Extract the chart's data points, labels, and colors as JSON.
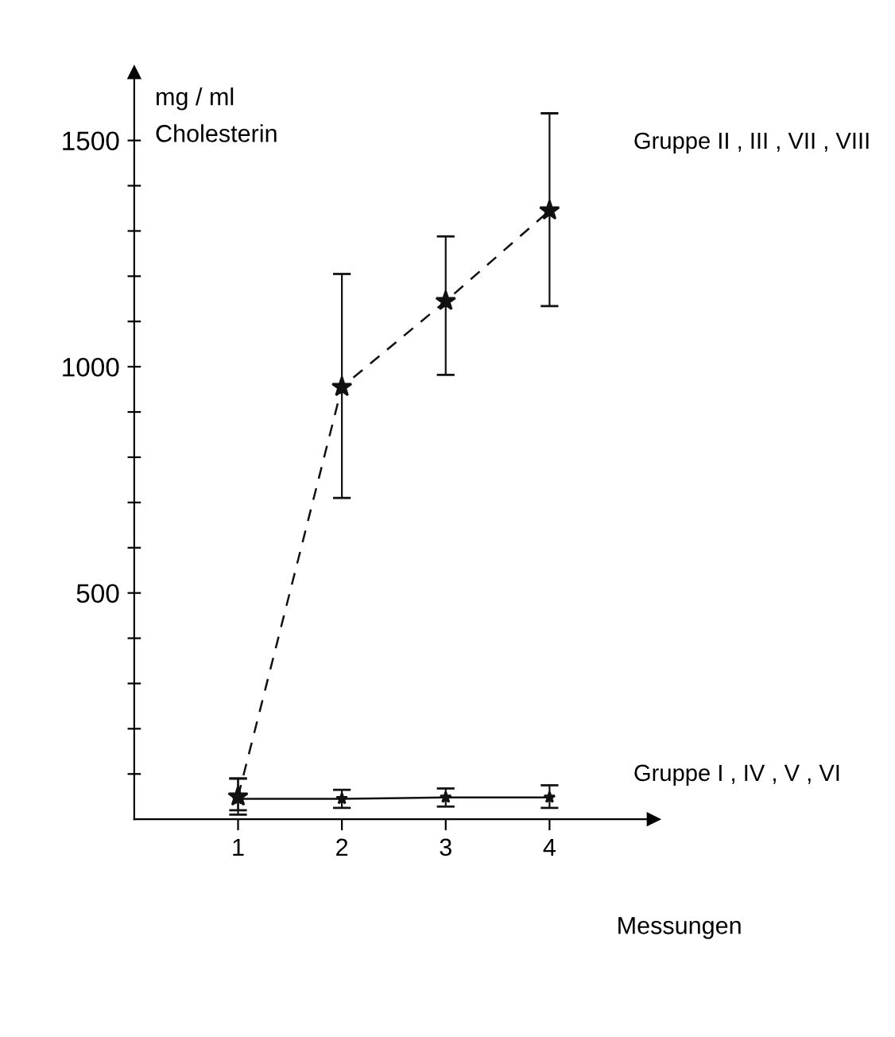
{
  "chart_data": {
    "type": "line",
    "ylabel": "mg / ml\nCholesterin",
    "xlabel": "Messungen",
    "x": [
      1,
      2,
      3,
      4
    ],
    "series": [
      {
        "name": "Gruppe II , III , VII , VIII",
        "color": "#111111",
        "line_style": "dashed",
        "values": [
          50,
          955,
          1145,
          1345
        ],
        "errors": [
          [
            20,
            90
          ],
          [
            710,
            1205
          ],
          [
            982,
            1288
          ],
          [
            1134,
            1560
          ]
        ]
      },
      {
        "name": "Gruppe I , IV , V , VI",
        "color": "#111111",
        "line_style": "solid",
        "values": [
          45,
          45,
          48,
          48
        ],
        "errors": [
          [
            10,
            90
          ],
          [
            25,
            65
          ],
          [
            28,
            68
          ],
          [
            25,
            75
          ]
        ]
      }
    ],
    "xlim": [
      0,
      5
    ],
    "ylim": [
      0,
      1650
    ],
    "xticks": [
      1,
      2,
      3,
      4
    ],
    "yticks": [
      {
        "value": 100,
        "label": null
      },
      {
        "value": 200,
        "label": null
      },
      {
        "value": 300,
        "label": null
      },
      {
        "value": 400,
        "label": null
      },
      500,
      {
        "value": 600,
        "label": null
      },
      {
        "value": 700,
        "label": null
      },
      {
        "value": 800,
        "label": null
      },
      {
        "value": 900,
        "label": null
      },
      1000,
      {
        "value": 1100,
        "label": null
      },
      {
        "value": 1200,
        "label": null
      },
      {
        "value": 1300,
        "label": null
      },
      {
        "value": 1400,
        "label": null
      },
      1500
    ],
    "marker": "star",
    "grid": false,
    "legend": false
  }
}
